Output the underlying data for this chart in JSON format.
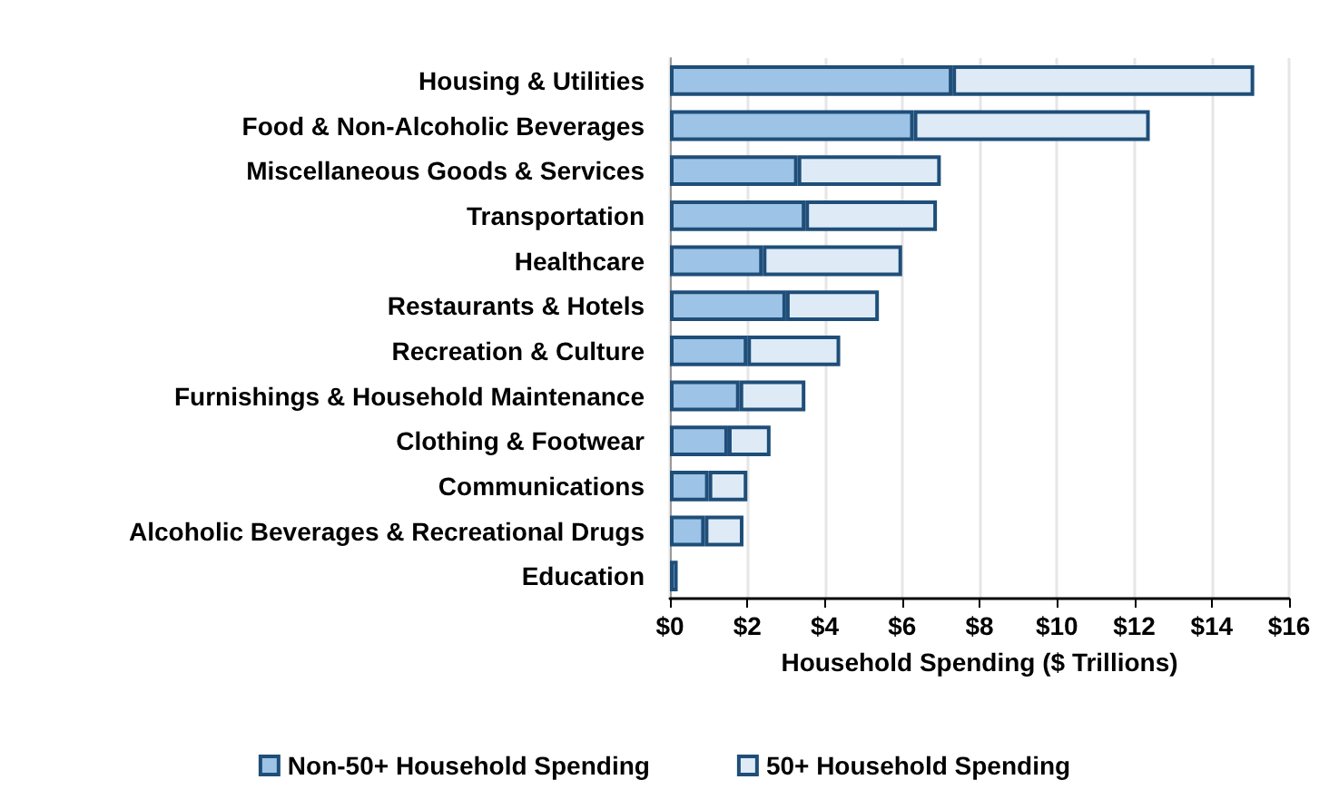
{
  "chart_data": {
    "type": "bar",
    "orientation": "horizontal",
    "stacked": true,
    "categories": [
      "Housing & Utilities",
      "Food & Non-Alcoholic Beverages",
      "Miscellaneous Goods & Services",
      "Transportation",
      "Healthcare",
      "Restaurants & Hotels",
      "Recreation & Culture",
      "Furnishings & Household Maintenance",
      "Clothing & Footwear",
      "Communications",
      "Alcoholic Beverages & Recreational Drugs",
      "Education"
    ],
    "series": [
      {
        "name": "Non-50+ Household Spending",
        "color": "#9dc3e6",
        "values": [
          7.3,
          6.3,
          3.3,
          3.5,
          2.4,
          3.0,
          2.0,
          1.8,
          1.5,
          1.0,
          0.9,
          0.2
        ]
      },
      {
        "name": "50+ Household Spending",
        "color": "#deebf7",
        "values": [
          7.8,
          6.1,
          3.7,
          3.4,
          3.6,
          2.4,
          2.4,
          1.7,
          1.1,
          1.0,
          1.0,
          null
        ]
      }
    ],
    "xlabel": "Household Spending ($ Trillions)",
    "xlim": [
      0,
      16
    ],
    "xticks": [
      {
        "value": 0,
        "label": "$0"
      },
      {
        "value": 2,
        "label": "$2"
      },
      {
        "value": 4,
        "label": "$4"
      },
      {
        "value": 6,
        "label": "$6"
      },
      {
        "value": 8,
        "label": "$8"
      },
      {
        "value": 10,
        "label": "$10"
      },
      {
        "value": 12,
        "label": "$12"
      },
      {
        "value": 14,
        "label": "$14"
      },
      {
        "value": 16,
        "label": "$16"
      }
    ],
    "grid": "x",
    "legend": "bottom"
  }
}
